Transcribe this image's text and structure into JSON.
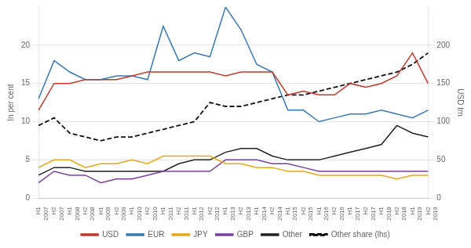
{
  "chart_data": {
    "type": "line",
    "categories": [
      "H1\n2007",
      "H2\n2007",
      "H1\n2008",
      "H2\n2008",
      "H1\n2009",
      "H2\n2009",
      "H1\n2010",
      "H2\n2010",
      "H1\n2011",
      "H2\n2011",
      "H1\n2012",
      "H2\n2012",
      "H1\n2013",
      "H2\n2013",
      "H1\n2014",
      "H2\n2014",
      "H1\n2015",
      "H2\n2015",
      "H1\n2016",
      "H2\n2016",
      "H1\n2017",
      "H2\n2017",
      "H1\n2018",
      "H2\n2018",
      "H1\n2019",
      "H2\n2019"
    ],
    "series": [
      {
        "name": "USD",
        "color": "#c0392b",
        "axis": "y2",
        "values": [
          115,
          150,
          150,
          155,
          155,
          155,
          160,
          165,
          165,
          165,
          165,
          165,
          160,
          165,
          165,
          165,
          135,
          140,
          135,
          135,
          150,
          145,
          150,
          160,
          190,
          150
        ]
      },
      {
        "name": "EUR",
        "color": "#3a78b5",
        "axis": "y2",
        "values": [
          130,
          180,
          165,
          155,
          155,
          160,
          160,
          155,
          225,
          180,
          190,
          185,
          250,
          220,
          175,
          165,
          115,
          115,
          100,
          105,
          110,
          110,
          115,
          110,
          105,
          115
        ]
      },
      {
        "name": "JPY",
        "color": "#e6a817",
        "axis": "y2",
        "values": [
          40,
          50,
          50,
          40,
          45,
          45,
          50,
          45,
          55,
          55,
          55,
          55,
          45,
          45,
          40,
          40,
          35,
          35,
          30,
          30,
          30,
          30,
          30,
          25,
          30,
          30
        ]
      },
      {
        "name": "GBP",
        "color": "#7b3fa0",
        "axis": "y2",
        "values": [
          20,
          35,
          30,
          30,
          20,
          25,
          25,
          30,
          35,
          35,
          35,
          35,
          50,
          50,
          50,
          45,
          45,
          40,
          35,
          35,
          35,
          35,
          35,
          35,
          35,
          35
        ]
      },
      {
        "name": "Other",
        "color": "#222222",
        "axis": "y2",
        "values": [
          30,
          40,
          40,
          35,
          35,
          35,
          35,
          35,
          35,
          45,
          50,
          50,
          60,
          65,
          65,
          55,
          50,
          50,
          50,
          55,
          60,
          65,
          70,
          95,
          85,
          80
        ]
      },
      {
        "name": "Other share (lhs)",
        "color": "#111111",
        "line_style": "dashed",
        "values": [
          9.5,
          10.5,
          8.5,
          8.0,
          7.5,
          8.0,
          8.0,
          8.5,
          9.0,
          9.5,
          10.0,
          12.5,
          12.0,
          12.0,
          12.5,
          13.0,
          13.5,
          13.5,
          14.0,
          14.5,
          15.0,
          15.5,
          16.0,
          16.5,
          17.5,
          19.0
        ]
      }
    ],
    "ylim": [
      0,
      25
    ],
    "yticks": [
      0,
      5,
      10,
      15,
      20
    ],
    "y2lim": [
      0,
      250
    ],
    "y2ticks": [
      0,
      50,
      100,
      150,
      200
    ],
    "ylabel": "In per cent",
    "y2label": "USD trn",
    "grid": true,
    "legend": "bottom"
  }
}
